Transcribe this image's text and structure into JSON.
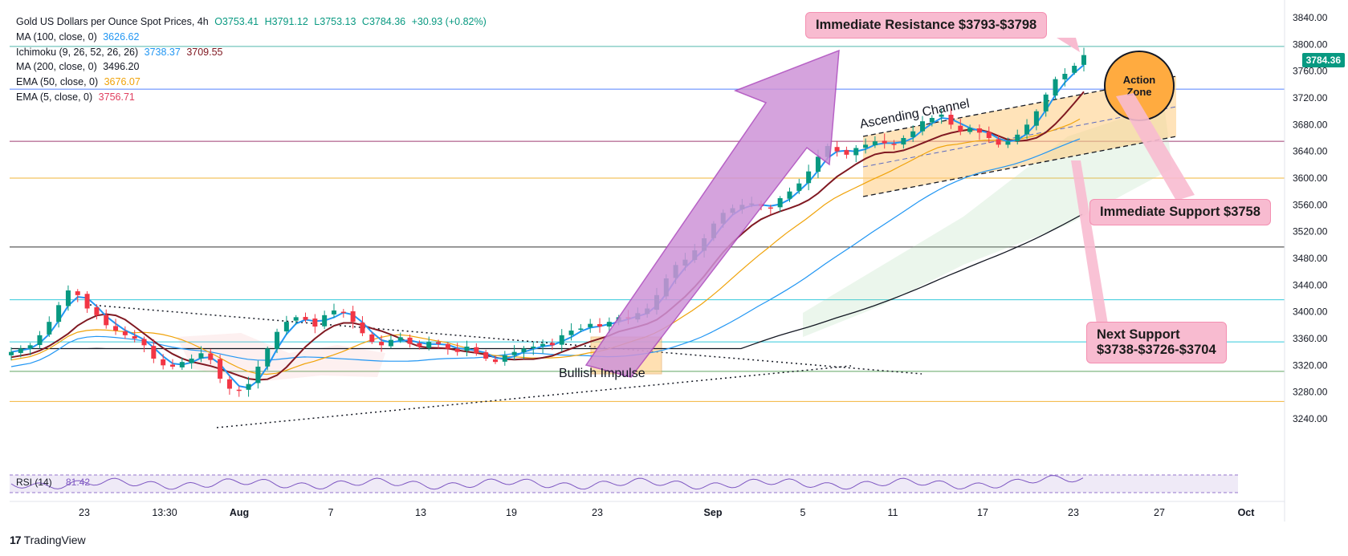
{
  "header": {
    "symbol": "Gold US Dollars per Ounce Spot Prices, 4h",
    "open": "O3753.41",
    "high": "H3791.12",
    "low": "L3753.13",
    "close": "C3784.36",
    "change": "+30.93 (+0.82%)"
  },
  "indicators": [
    {
      "label": "MA (100, close, 0)",
      "value": "3626.62",
      "value2": "",
      "color": "#2196f3"
    },
    {
      "label": "Ichimoku (9, 26, 52, 26, 26)",
      "value": "3738.37",
      "value2": "3709.55",
      "color": "#2196f3",
      "color2": "#801922"
    },
    {
      "label": "MA (200, close, 0)",
      "value": "3496.20",
      "value2": "",
      "color": "#131722"
    },
    {
      "label": "EMA (50, close, 0)",
      "value": "3676.07",
      "value2": "",
      "color": "#f0a30a"
    },
    {
      "label": "EMA (5, close, 0)",
      "value": "3756.71",
      "value2": "",
      "color": "#e04060"
    }
  ],
  "callouts": {
    "resistance": "Immediate Resistance $3793-$3798",
    "support": "Immediate Support $3758",
    "next_support_line1": "Next Support",
    "next_support_line2": "$3738-$3726-$3704"
  },
  "annotations": {
    "action_zone_line1": "Action",
    "action_zone_line2": "Zone",
    "ascending_channel": "Ascending Channel",
    "bullish_impulse": "Bullish Impulse"
  },
  "current_price": "3784.36",
  "rsi": {
    "label": "RSI (14)",
    "value": "81.42"
  },
  "brand": "TradingView",
  "colors": {
    "up": "#089981",
    "down": "#f23645",
    "accent_pink": "#f8bbd0",
    "action_zone": "#ffab40",
    "channel_fill": "#ffcc80",
    "arrow": "#ce93d8"
  },
  "chart_data": {
    "type": "candlestick",
    "title": "Gold US Dollars per Ounce Spot Prices, 4h",
    "ylim": [
      3200,
      3860
    ],
    "y_ticks": [
      3840,
      3800,
      3760,
      3720,
      3680,
      3640,
      3600,
      3560,
      3520,
      3480,
      3440,
      3400,
      3360,
      3320,
      3280,
      3240
    ],
    "x_ticks": [
      "23",
      "13:30",
      "Aug",
      "7",
      "13",
      "19",
      "23",
      "Sep",
      "5",
      "11",
      "17",
      "23",
      "27",
      "Oct"
    ],
    "horizontal_levels": [
      {
        "price": 3797,
        "color": "#26a69a"
      },
      {
        "price": 3733,
        "color": "#2962ff"
      },
      {
        "price": 3655,
        "color": "#880e4f"
      },
      {
        "price": 3600,
        "color": "#f0a30a"
      },
      {
        "price": 3497,
        "color": "#000000"
      },
      {
        "price": 3418,
        "color": "#00bcd4"
      },
      {
        "price": 3355,
        "color": "#00bcd4"
      },
      {
        "price": 3311,
        "color": "#388e3c"
      },
      {
        "price": 3266,
        "color": "#f0a30a"
      }
    ],
    "close_series": [
      3340,
      3345,
      3350,
      3365,
      3385,
      3410,
      3432,
      3425,
      3405,
      3395,
      3380,
      3372,
      3365,
      3360,
      3350,
      3330,
      3320,
      3318,
      3325,
      3330,
      3338,
      3328,
      3300,
      3285,
      3282,
      3292,
      3318,
      3345,
      3370,
      3385,
      3392,
      3388,
      3378,
      3395,
      3402,
      3400,
      3385,
      3368,
      3355,
      3350,
      3358,
      3362,
      3352,
      3348,
      3355,
      3352,
      3345,
      3340,
      3348,
      3338,
      3330,
      3325,
      3335,
      3340,
      3345,
      3348,
      3352,
      3350,
      3365,
      3372,
      3375,
      3382,
      3378,
      3385,
      3392,
      3390,
      3398,
      3405,
      3425,
      3450,
      3470,
      3478,
      3492,
      3510,
      3532,
      3548,
      3555,
      3560,
      3562,
      3558,
      3555,
      3570,
      3580,
      3592,
      3610,
      3632,
      3648,
      3640,
      3635,
      3645,
      3650,
      3655,
      3652,
      3650,
      3660,
      3670,
      3685,
      3690,
      3695,
      3680,
      3670,
      3675,
      3668,
      3660,
      3650,
      3655,
      3665,
      3680,
      3700,
      3725,
      3748,
      3756,
      3768,
      3784
    ]
  }
}
